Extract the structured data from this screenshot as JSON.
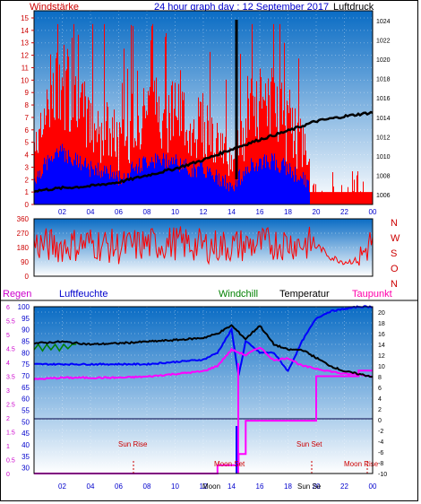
{
  "title": "24 hour graph day : 12 September 2017",
  "top_panel": {
    "left_label": "Windstärke",
    "right_label": "Luftdruck",
    "left_ticks": [
      "0",
      "1",
      "2",
      "3",
      "4",
      "5",
      "6",
      "7",
      "8",
      "9",
      "10",
      "11",
      "12",
      "13",
      "14",
      "15"
    ],
    "right_ticks": [
      "1006",
      "1008",
      "1010",
      "1012",
      "1014",
      "1016",
      "1018",
      "1020",
      "1022",
      "1024"
    ]
  },
  "mid_panel": {
    "left_ticks": [
      "0",
      "90",
      "180",
      "270",
      "360"
    ],
    "compass": [
      "N",
      "W",
      "S",
      "O",
      "N"
    ]
  },
  "bottom_panel": {
    "legend": {
      "regen": "Regen",
      "luftfeuchte": "Luftfeuchte",
      "windchill": "Windchill",
      "temperatur": "Temperatur",
      "taupunkt": "Taupunkt"
    },
    "regen_ticks": [
      "0",
      "0.5",
      "1",
      "1.5",
      "2",
      "2.5",
      "3",
      "3.5",
      "4",
      "4.5",
      "5",
      "5.5",
      "6"
    ],
    "humidity_ticks": [
      "30",
      "35",
      "40",
      "45",
      "50",
      "55",
      "60",
      "65",
      "70",
      "75",
      "80",
      "85",
      "90",
      "95",
      "100"
    ],
    "temp_ticks": [
      "-10",
      "-8",
      "-6",
      "-4",
      "-2",
      "0",
      "2",
      "4",
      "6",
      "8",
      "10",
      "12",
      "14",
      "16",
      "18",
      "20"
    ],
    "events": {
      "sun_rise": "Sun Rise",
      "sun_set": "Sun Set",
      "moon_set": "Moon Set",
      "moon_rise": "Moon Rise",
      "moon_set_short": "Moon",
      "sun_set_short": "Sun Se"
    }
  },
  "x_ticks": [
    "02",
    "04",
    "06",
    "08",
    "10",
    "12",
    "14",
    "16",
    "18",
    "20",
    "22",
    "00"
  ],
  "colors": {
    "sky_top": "#0c6fc6",
    "sky_bottom": "#ffffff",
    "wind": "#ff0000",
    "gust_blue": "#0000ff",
    "pressure": "#000000",
    "humidity": "#0000ff",
    "temperature": "#000000",
    "dewpoint": "#ff00ff",
    "windchill": "#008000",
    "rain": "#ff00ff",
    "label_red": "#cc0000",
    "label_blue": "#0000cc"
  },
  "chart_data": [
    {
      "type": "line",
      "title": "24 hour graph day : 12 September 2017",
      "x_unit": "hour",
      "series": [
        {
          "name": "Windstärke",
          "axis": "left",
          "ylim": [
            0,
            15
          ],
          "x": [
            0,
            1,
            2,
            3,
            4,
            5,
            6,
            7,
            8,
            9,
            10,
            11,
            12,
            13,
            14,
            15,
            16,
            17,
            18,
            19,
            20,
            21,
            22,
            23,
            24
          ],
          "values": [
            3,
            5,
            6,
            5,
            4,
            4,
            3,
            4,
            5,
            5,
            5,
            4,
            4,
            3,
            2,
            4,
            5,
            5,
            4,
            3,
            1,
            1,
            1,
            1,
            2
          ]
        },
        {
          "name": "Luftdruck",
          "axis": "right",
          "ylim": [
            1005,
            1025
          ],
          "x": [
            0,
            2,
            4,
            6,
            8,
            10,
            12,
            14,
            16,
            18,
            20,
            22,
            24
          ],
          "values": [
            1006.4,
            1006.7,
            1006.9,
            1007.3,
            1008.0,
            1008.7,
            1009.6,
            1010.7,
            1011.7,
            1012.6,
            1013.6,
            1014.1,
            1014.5
          ]
        }
      ]
    },
    {
      "type": "scatter",
      "ylim": [
        0,
        360
      ],
      "series": [
        {
          "name": "Windrichtung",
          "x": [
            0,
            2,
            4,
            6,
            8,
            10,
            12,
            14,
            16,
            18,
            20,
            21,
            22,
            23,
            24
          ],
          "values": [
            200,
            190,
            210,
            180,
            200,
            210,
            190,
            190,
            200,
            210,
            200,
            120,
            90,
            100,
            230
          ]
        }
      ]
    },
    {
      "type": "line",
      "series": [
        {
          "name": "Luftfeuchte",
          "axis": "humidity",
          "ylim": [
            30,
            100
          ],
          "x": [
            0,
            2,
            4,
            6,
            8,
            10,
            12,
            13,
            14,
            14.5,
            15,
            16,
            17,
            18,
            19,
            20,
            21,
            22,
            23,
            24
          ],
          "values": [
            75,
            75,
            75,
            75,
            75,
            76,
            77,
            80,
            90,
            70,
            85,
            80,
            80,
            72,
            85,
            95,
            98,
            99,
            100,
            100
          ]
        },
        {
          "name": "Temperatur",
          "axis": "temp",
          "ylim": [
            -10,
            21
          ],
          "x": [
            0,
            2,
            4,
            6,
            8,
            10,
            12,
            13,
            14,
            15,
            16,
            17,
            18,
            19,
            20,
            21,
            22,
            23,
            24
          ],
          "values": [
            14.2,
            14.5,
            14.0,
            14.2,
            14.5,
            14.8,
            15.2,
            16.0,
            17.5,
            15.0,
            17.5,
            14.0,
            13.0,
            13.0,
            11.5,
            10.0,
            9.0,
            8.5,
            8.0
          ]
        },
        {
          "name": "Taupunkt",
          "axis": "temp",
          "ylim": [
            -10,
            21
          ],
          "x": [
            0,
            2,
            4,
            6,
            8,
            10,
            12,
            13,
            14,
            15,
            16,
            17,
            18,
            19,
            20,
            21,
            22,
            23,
            24
          ],
          "values": [
            7.5,
            7.8,
            7.8,
            7.8,
            8.0,
            8.5,
            9.0,
            10.0,
            13.0,
            12.0,
            13.5,
            11.0,
            11.5,
            10.0,
            9.5,
            9.0,
            8.5,
            8.5,
            8.0
          ]
        },
        {
          "name": "Windchill",
          "axis": "temp",
          "ylim": [
            -10,
            21
          ],
          "x": [
            0,
            0.3,
            0.6,
            0.9,
            1.2,
            1.5,
            1.8,
            2.1,
            2.4,
            2.7,
            3.0
          ],
          "values": [
            13.0,
            14.0,
            12.8,
            14.0,
            13.0,
            14.0,
            12.8,
            14.0,
            13.2,
            14.0,
            14.0
          ]
        },
        {
          "name": "Regen",
          "axis": "regen",
          "ylim": [
            0,
            6
          ],
          "x": [
            0,
            12,
            13,
            14,
            14.5,
            15,
            16,
            17,
            18,
            19,
            20,
            22,
            23,
            24
          ],
          "values": [
            0,
            0,
            0.3,
            0.3,
            0.7,
            1.9,
            1.9,
            1.9,
            1.9,
            1.9,
            3.5,
            3.5,
            3.7,
            3.7
          ]
        }
      ]
    }
  ]
}
